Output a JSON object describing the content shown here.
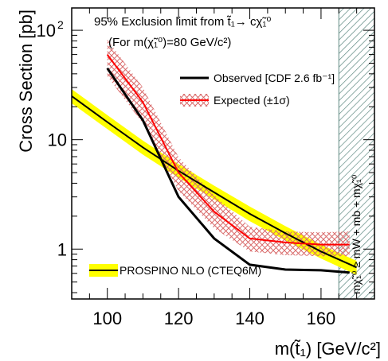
{
  "chart_data": {
    "type": "line",
    "title_line1": "95% Exclusion limit from t̃₁→ cχ̃₁⁰",
    "title_line2": "(For m(χ̃₁⁰)=80 GeV/c²)",
    "xlabel": "m(t̃₁) [GeV/c²]",
    "ylabel": "Cross Section [pb]",
    "xlim": [
      90,
      175
    ],
    "ylim": [
      0.35,
      160
    ],
    "yscale": "log",
    "grid": false,
    "legend_placement": "top-right",
    "x_ticks": [
      {
        "value": 100,
        "label": "100"
      },
      {
        "value": 120,
        "label": "120"
      },
      {
        "value": 140,
        "label": "140"
      },
      {
        "value": 160,
        "label": "160"
      }
    ],
    "y_ticks": [
      {
        "value": 1,
        "label": "1"
      },
      {
        "value": 10,
        "label": "10"
      },
      {
        "value": 100,
        "label": "10",
        "exponent": "2"
      }
    ],
    "series": [
      {
        "name": "Observed [CDF 2.6 fb⁻¹]",
        "kind": "line",
        "color": "#000000",
        "x": [
          100,
          110,
          120,
          130,
          140,
          150,
          160,
          168
        ],
        "y": [
          45,
          15,
          3.0,
          1.25,
          0.72,
          0.65,
          0.64,
          0.61
        ]
      },
      {
        "name": "Expected (±1σ)",
        "kind": "line-with-band",
        "color": "#ff0000",
        "band_color": "#d96b6b",
        "x": [
          100,
          110,
          120,
          130,
          140,
          150,
          160,
          168
        ],
        "y": [
          60,
          22,
          5.0,
          2.2,
          1.25,
          1.15,
          1.1,
          1.1
        ],
        "y_low": [
          38,
          14,
          3.4,
          1.55,
          0.95,
          0.88,
          0.86,
          0.86
        ],
        "y_high": [
          82,
          30,
          6.9,
          3.1,
          1.6,
          1.45,
          1.42,
          1.45
        ]
      },
      {
        "name": "PROSPINO NLO (CTEQ6M)",
        "kind": "line-with-band",
        "color": "#000000",
        "band_color": "#ffff00",
        "x": [
          90,
          100,
          110,
          120,
          130,
          140,
          150,
          160,
          170
        ],
        "y": [
          25,
          14.5,
          8.5,
          5.2,
          3.3,
          2.1,
          1.4,
          0.95,
          0.68
        ],
        "y_low": [
          21.5,
          12.5,
          7.3,
          4.5,
          2.85,
          1.8,
          1.2,
          0.82,
          0.58
        ],
        "y_high": [
          29,
          16.8,
          9.8,
          6.0,
          3.8,
          2.45,
          1.62,
          1.1,
          0.78
        ]
      }
    ],
    "excluded_region": {
      "x_min": 165,
      "x_max": 175,
      "label": "mχ̃₁⁰ ≥ mW + mb + mχ̃₁⁰",
      "color": "#5f8a82"
    }
  }
}
